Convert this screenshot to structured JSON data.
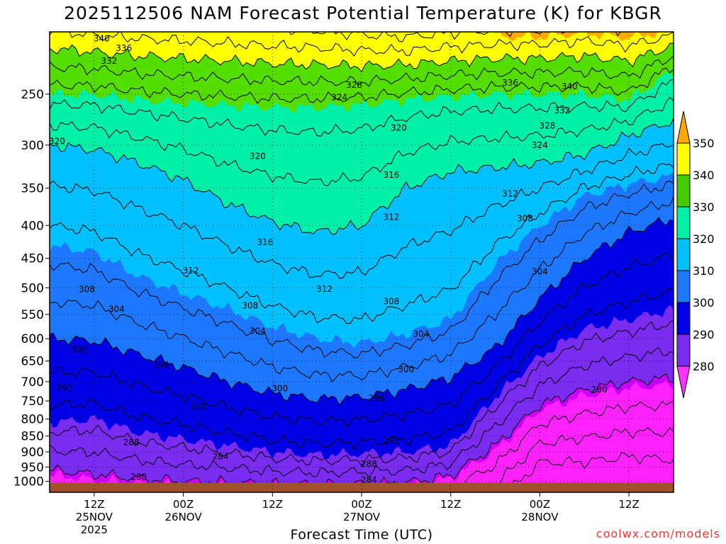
{
  "chart_data": {
    "type": "contour",
    "title": "2025112506 NAM Forecast Potential Temperature (K) for KBGR",
    "xlabel": "Forecast Time (UTC)",
    "ylabel": "",
    "credit": "coolwx.com/models",
    "y_axis": {
      "unit": "hPa",
      "scale": "log",
      "inverted": true,
      "range": [
        1040,
        200
      ],
      "ticks": [
        250,
        300,
        350,
        400,
        450,
        500,
        550,
        600,
        650,
        700,
        750,
        800,
        850,
        900,
        950,
        1000
      ],
      "tick_labels": [
        "250",
        "300",
        "350",
        "400",
        "450",
        "500",
        "550",
        "600",
        "650",
        "700",
        "750",
        "800",
        "850",
        "900",
        "950",
        "1000"
      ]
    },
    "x_axis": {
      "unit": "forecast hour",
      "range": [
        0,
        84
      ],
      "ticks": [
        {
          "hour": 6,
          "lines": [
            "12Z",
            "25NOV",
            "2025"
          ]
        },
        {
          "hour": 18,
          "lines": [
            "00Z",
            "26NOV"
          ]
        },
        {
          "hour": 30,
          "lines": [
            "12Z"
          ]
        },
        {
          "hour": 42,
          "lines": [
            "00Z",
            "27NOV"
          ]
        },
        {
          "hour": 54,
          "lines": [
            "12Z"
          ]
        },
        {
          "hour": 66,
          "lines": [
            "00Z",
            "28NOV"
          ]
        },
        {
          "hour": 78,
          "lines": [
            "12Z"
          ]
        }
      ]
    },
    "colorbar": {
      "unit": "K",
      "levels": [
        280,
        290,
        300,
        310,
        320,
        330,
        340,
        350
      ],
      "labels": [
        "280",
        "290",
        "300",
        "310",
        "320",
        "330",
        "340",
        "350"
      ],
      "colors": [
        "#ff33ff",
        "#cc00ff",
        "#8a1cf2",
        "#0000e6",
        "#1e78ff",
        "#00c8ff",
        "#00f5a8",
        "#33dd00",
        "#66ff00",
        "#ffff00",
        "#ffaa00"
      ]
    },
    "contour_interval": 4,
    "gridlines": "dotted",
    "theta_profile_by_hour": [
      {
        "hour": 0,
        "p_at_theta": {
          "280": 960,
          "290": 810,
          "300": 600,
          "310": 430,
          "320": 300,
          "330": 250,
          "340": 212
        }
      },
      {
        "hour": 6,
        "p_at_theta": {
          "280": 975,
          "290": 800,
          "300": 605,
          "310": 440,
          "320": 305,
          "330": 250,
          "340": 215
        }
      },
      {
        "hour": 12,
        "p_at_theta": {
          "280": 990,
          "290": 840,
          "300": 635,
          "310": 480,
          "320": 320,
          "330": 255,
          "340": 218
        }
      },
      {
        "hour": 18,
        "p_at_theta": {
          "280": 1000,
          "290": 860,
          "300": 665,
          "310": 510,
          "320": 340,
          "330": 258,
          "340": 220
        }
      },
      {
        "hour": 24,
        "p_at_theta": {
          "280": 1005,
          "290": 880,
          "300": 700,
          "310": 540,
          "320": 370,
          "330": 260,
          "340": 222
        }
      },
      {
        "hour": 30,
        "p_at_theta": {
          "280": 1010,
          "290": 900,
          "300": 730,
          "310": 575,
          "320": 395,
          "330": 262,
          "340": 224
        }
      },
      {
        "hour": 36,
        "p_at_theta": {
          "280": 1012,
          "290": 910,
          "300": 745,
          "310": 600,
          "320": 410,
          "330": 262,
          "340": 225
        }
      },
      {
        "hour": 42,
        "p_at_theta": {
          "280": 1010,
          "290": 905,
          "300": 740,
          "310": 610,
          "320": 400,
          "330": 260,
          "340": 226
        }
      },
      {
        "hour": 48,
        "p_at_theta": {
          "280": 1005,
          "290": 900,
          "300": 720,
          "310": 590,
          "320": 350,
          "330": 255,
          "340": 225
        }
      },
      {
        "hour": 54,
        "p_at_theta": {
          "280": 980,
          "290": 880,
          "300": 690,
          "310": 560,
          "320": 330,
          "330": 252,
          "340": 222
        }
      },
      {
        "hour": 60,
        "p_at_theta": {
          "280": 880,
          "290": 740,
          "300": 620,
          "310": 460,
          "320": 325,
          "330": 250,
          "340": 220
        }
      },
      {
        "hour": 66,
        "p_at_theta": {
          "280": 760,
          "290": 640,
          "300": 520,
          "310": 400,
          "320": 320,
          "330": 250,
          "340": 220
        }
      },
      {
        "hour": 72,
        "p_at_theta": {
          "280": 720,
          "290": 580,
          "300": 450,
          "310": 360,
          "320": 310,
          "330": 250,
          "340": 218
        }
      },
      {
        "hour": 78,
        "p_at_theta": {
          "280": 700,
          "290": 560,
          "300": 410,
          "310": 345,
          "320": 290,
          "330": 255,
          "340": 222
        }
      },
      {
        "hour": 84,
        "p_at_theta": {
          "280": 690,
          "290": 540,
          "300": 390,
          "310": 335,
          "320": 275,
          "330": 230,
          "340": 210
        }
      }
    ],
    "contour_labels": [
      {
        "text": "340",
        "hour": 7,
        "p": 205
      },
      {
        "text": "336",
        "hour": 10,
        "p": 212
      },
      {
        "text": "332",
        "hour": 8,
        "p": 222
      },
      {
        "text": "328",
        "hour": 41,
        "p": 242
      },
      {
        "text": "324",
        "hour": 39,
        "p": 253
      },
      {
        "text": "320",
        "hour": 47,
        "p": 282
      },
      {
        "text": "320",
        "hour": 1,
        "p": 296
      },
      {
        "text": "320",
        "hour": 28,
        "p": 312
      },
      {
        "text": "316",
        "hour": 46,
        "p": 334
      },
      {
        "text": "312",
        "hour": 46,
        "p": 388
      },
      {
        "text": "316",
        "hour": 29,
        "p": 425
      },
      {
        "text": "312",
        "hour": 19,
        "p": 470
      },
      {
        "text": "312",
        "hour": 37,
        "p": 502
      },
      {
        "text": "308",
        "hour": 5,
        "p": 503
      },
      {
        "text": "304",
        "hour": 9,
        "p": 540
      },
      {
        "text": "308",
        "hour": 27,
        "p": 533
      },
      {
        "text": "308",
        "hour": 46,
        "p": 525
      },
      {
        "text": "304",
        "hour": 28,
        "p": 584
      },
      {
        "text": "304",
        "hour": 50,
        "p": 590
      },
      {
        "text": "300",
        "hour": 4,
        "p": 624
      },
      {
        "text": "296",
        "hour": 15,
        "p": 660
      },
      {
        "text": "300",
        "hour": 48,
        "p": 670
      },
      {
        "text": "300",
        "hour": 31,
        "p": 717
      },
      {
        "text": "292",
        "hour": 2,
        "p": 716
      },
      {
        "text": "296",
        "hour": 44,
        "p": 742
      },
      {
        "text": "292",
        "hour": 20,
        "p": 765
      },
      {
        "text": "292",
        "hour": 46,
        "p": 865
      },
      {
        "text": "288",
        "hour": 11,
        "p": 870
      },
      {
        "text": "284",
        "hour": 23,
        "p": 915
      },
      {
        "text": "288",
        "hour": 43,
        "p": 940
      },
      {
        "text": "284",
        "hour": 43,
        "p": 995
      },
      {
        "text": "280",
        "hour": 12,
        "p": 985
      },
      {
        "text": "312",
        "hour": 62,
        "p": 357
      },
      {
        "text": "308",
        "hour": 64,
        "p": 390
      },
      {
        "text": "304",
        "hour": 66,
        "p": 472
      },
      {
        "text": "336",
        "hour": 62,
        "p": 240
      },
      {
        "text": "340",
        "hour": 70,
        "p": 243
      },
      {
        "text": "332",
        "hour": 69,
        "p": 265
      },
      {
        "text": "328",
        "hour": 67,
        "p": 280
      },
      {
        "text": "324",
        "hour": 66,
        "p": 300
      },
      {
        "text": "280",
        "hour": 74,
        "p": 720
      }
    ],
    "terrain": {
      "top_p": 1005,
      "color": "#a0522d"
    }
  }
}
